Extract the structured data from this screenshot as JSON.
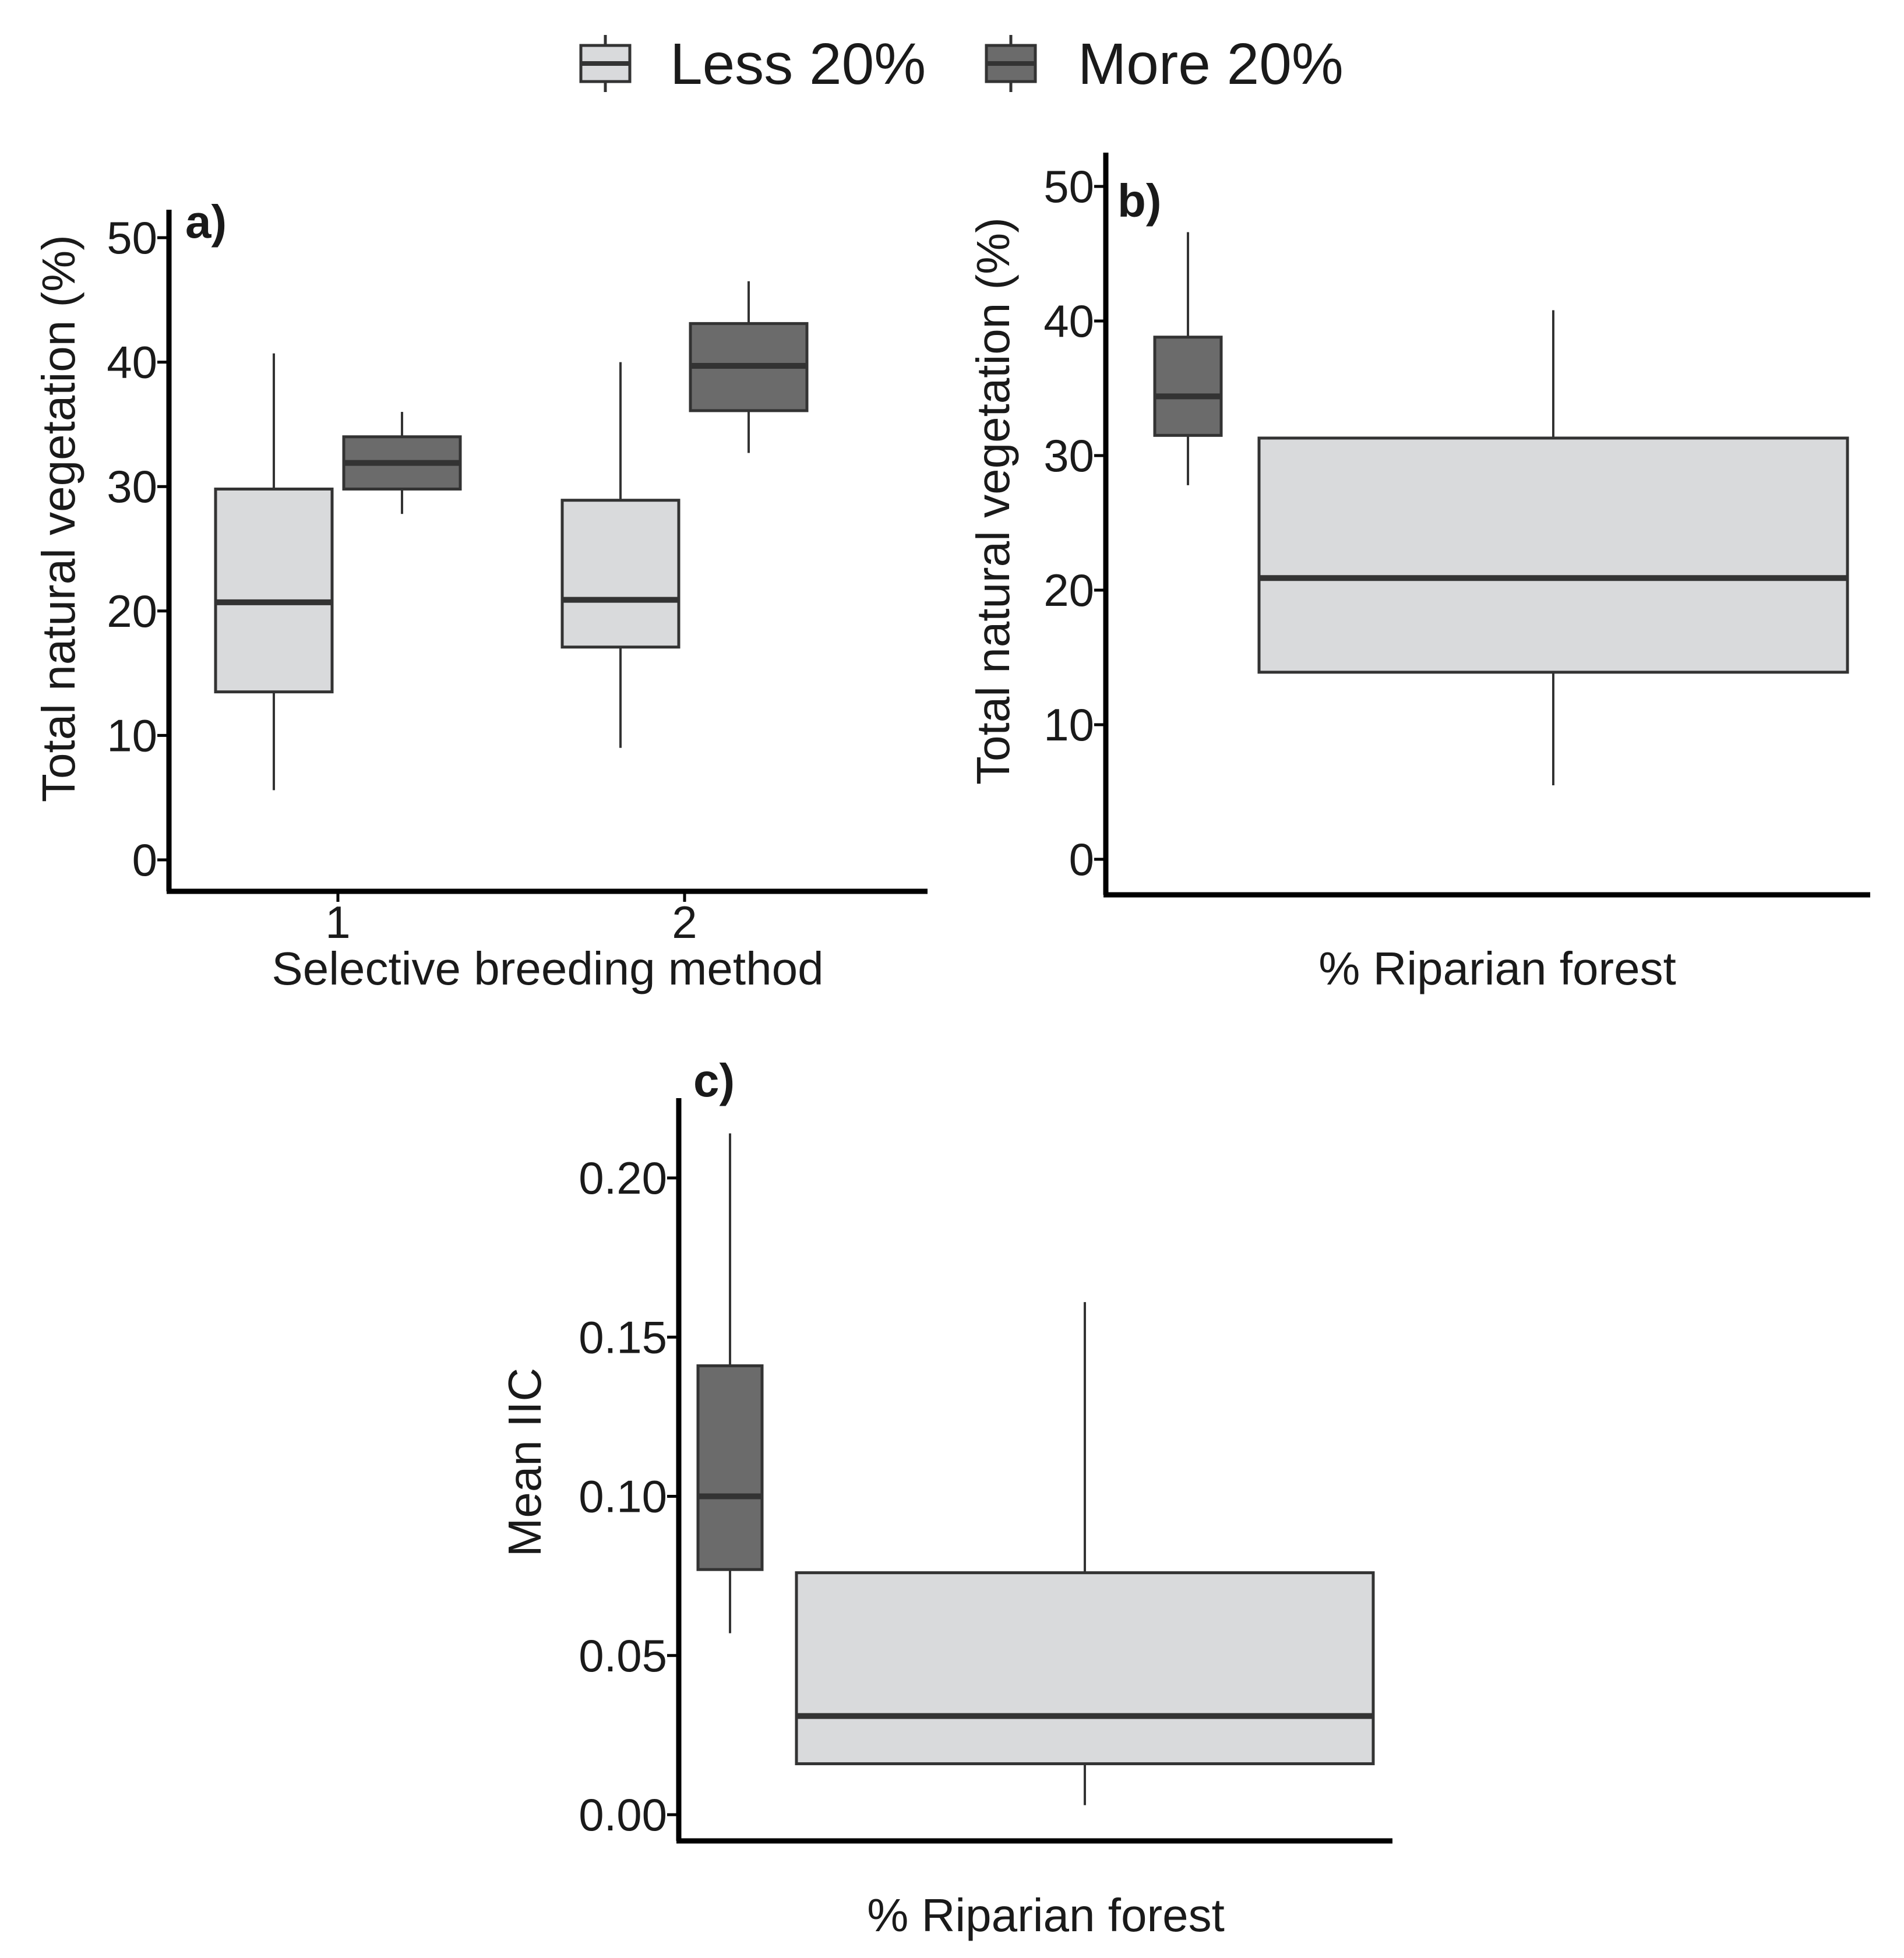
{
  "legend": {
    "items": [
      {
        "label": "Less 20%",
        "color": "#d9dadc"
      },
      {
        "label": "More 20%",
        "color": "#6b6b6b"
      }
    ]
  },
  "chart_data": [
    {
      "type": "boxplot",
      "panel_label": "a)",
      "xlabel": "Selective breeding method",
      "ylabel": "Total natural vegetation (%)",
      "ylim": [
        0,
        52
      ],
      "yticks": [
        "0",
        "10",
        "20",
        "30",
        "40",
        "50"
      ],
      "ytick_values": [
        0,
        10,
        20,
        30,
        40,
        50
      ],
      "categories": [
        "1",
        "2"
      ],
      "series": [
        {
          "name": "Less 20%",
          "boxes": [
            {
              "category": "1",
              "whisker_low": 5.6,
              "q1": 13.5,
              "median": 20.7,
              "q3": 29.8,
              "whisker_high": 40.7
            },
            {
              "category": "2",
              "whisker_low": 9.0,
              "q1": 17.1,
              "median": 20.9,
              "q3": 28.9,
              "whisker_high": 40.0
            }
          ]
        },
        {
          "name": "More 20%",
          "boxes": [
            {
              "category": "1",
              "whisker_low": 27.8,
              "q1": 29.8,
              "median": 31.9,
              "q3": 34.0,
              "whisker_high": 36.0
            },
            {
              "category": "2",
              "whisker_low": 32.7,
              "q1": 36.1,
              "median": 39.7,
              "q3": 43.1,
              "whisker_high": 46.5
            }
          ]
        }
      ]
    },
    {
      "type": "boxplot",
      "panel_label": "b)",
      "xlabel": "% Riparian forest",
      "ylabel": "Total natural vegetation (%)",
      "ylim": [
        0,
        52
      ],
      "yticks": [
        "0",
        "10",
        "20",
        "30",
        "40",
        "50"
      ],
      "ytick_values": [
        0,
        10,
        20,
        30,
        40,
        50
      ],
      "boxes": [
        {
          "group": "More 20%",
          "whisker_low": 27.8,
          "q1": 31.5,
          "median": 34.4,
          "q3": 38.8,
          "whisker_high": 46.6
        },
        {
          "group": "Less 20%",
          "whisker_low": 5.5,
          "q1": 13.9,
          "median": 20.9,
          "q3": 31.3,
          "whisker_high": 40.8
        }
      ]
    },
    {
      "type": "boxplot",
      "panel_label": "c)",
      "xlabel": "% Riparian forest",
      "ylabel": "Mean IIC",
      "ylim": [
        -0.003,
        0.22
      ],
      "yticks": [
        "0.00",
        "0.05",
        "0.10",
        "0.15",
        "0.20"
      ],
      "ytick_values": [
        0.0,
        0.05,
        0.1,
        0.15,
        0.2
      ],
      "boxes": [
        {
          "group": "More 20%",
          "whisker_low": 0.057,
          "q1": 0.077,
          "median": 0.1,
          "q3": 0.141,
          "whisker_high": 0.214
        },
        {
          "group": "Less 20%",
          "whisker_low": 0.003,
          "q1": 0.016,
          "median": 0.031,
          "q3": 0.076,
          "whisker_high": 0.161
        }
      ]
    }
  ]
}
